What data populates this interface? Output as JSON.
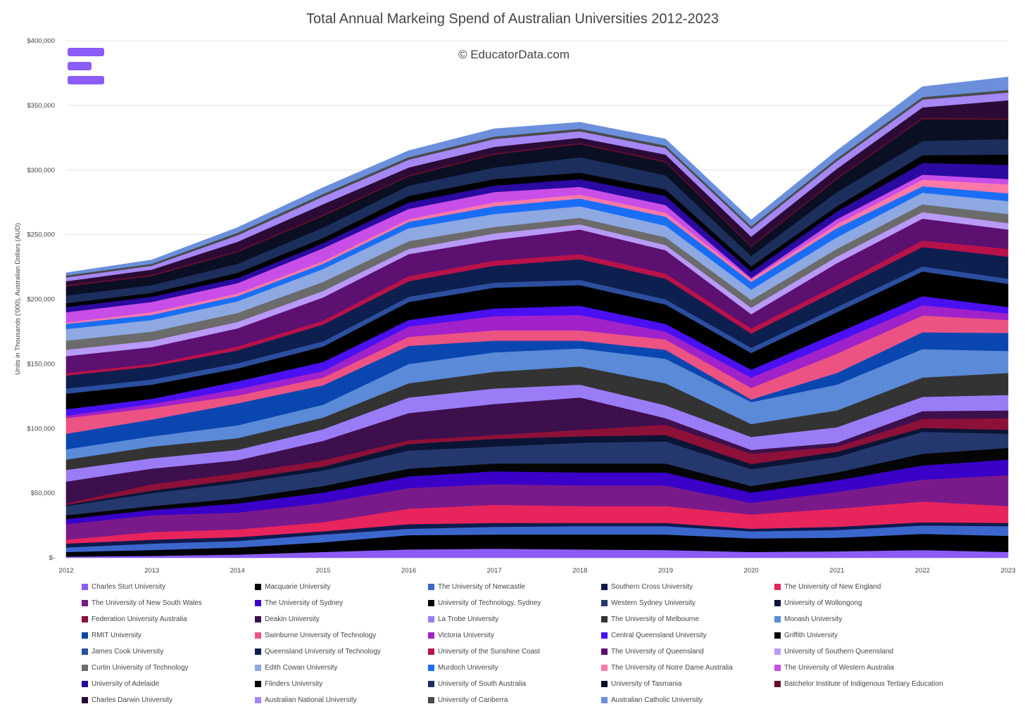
{
  "chart_data": {
    "type": "area",
    "title": "Total Annual Markeing Spend of Australian Universities 2012-2023",
    "watermark": "© EducatorData.com",
    "xlabel": "",
    "ylabel": "Units in Thousands ('000), Australian Dollars (AUD)",
    "x": [
      "2012",
      "2013",
      "2014",
      "2015",
      "2016",
      "2017",
      "2018",
      "2019",
      "2020",
      "2021",
      "2022",
      "2023"
    ],
    "ylim": [
      0,
      400000
    ],
    "yticks": [
      0,
      50000,
      100000,
      150000,
      200000,
      250000,
      300000,
      350000,
      400000
    ],
    "ytick_labels": [
      "$-",
      "$50,000",
      "$100,000",
      "$150,000",
      "$200,000",
      "$250,000",
      "$300,000",
      "$350,000",
      "$400,000"
    ],
    "stacked": true,
    "legend_position": "bottom",
    "series": [
      {
        "name": "Charles Sturt University",
        "color": "#8b5cf6",
        "values": [
          1000,
          1500,
          2500,
          4500,
          6500,
          7000,
          6500,
          6000,
          4500,
          5000,
          6000,
          4500
        ]
      },
      {
        "name": "Macquarie University",
        "color": "#000000",
        "values": [
          3500,
          4500,
          5500,
          7500,
          11000,
          11000,
          11500,
          12000,
          10500,
          10500,
          12500,
          12500
        ]
      },
      {
        "name": "The University of Newcastle",
        "color": "#3b66cc",
        "values": [
          3500,
          5000,
          5000,
          6000,
          5000,
          6000,
          6500,
          6500,
          5500,
          6000,
          6500,
          7500
        ]
      },
      {
        "name": "Southern Cross University",
        "color": "#0d1b4c",
        "values": [
          3000,
          3000,
          3000,
          2500,
          3500,
          3000,
          2500,
          2500,
          2000,
          2500,
          2500,
          2500
        ]
      },
      {
        "name": "The University of New England",
        "color": "#e8245d",
        "values": [
          3000,
          6000,
          6000,
          7000,
          12000,
          14000,
          13000,
          13000,
          11000,
          14000,
          16000,
          13000
        ]
      },
      {
        "name": "The University of New South Wales",
        "color": "#7a1a8a",
        "values": [
          12000,
          13000,
          13000,
          15000,
          16000,
          16000,
          16000,
          16000,
          9000,
          13000,
          17000,
          24000
        ]
      },
      {
        "name": "The University of Sydney",
        "color": "#3a00c8",
        "values": [
          4000,
          4000,
          7000,
          8000,
          9000,
          10000,
          10000,
          10000,
          8000,
          9000,
          11000,
          12000
        ]
      },
      {
        "name": "University of Technology, Sydney",
        "color": "#050505",
        "values": [
          3000,
          3000,
          4000,
          5000,
          6000,
          6000,
          7000,
          7000,
          5000,
          6000,
          9000,
          9000
        ]
      },
      {
        "name": "Western Sydney University",
        "color": "#25386e",
        "values": [
          7000,
          10000,
          12000,
          12000,
          14000,
          13000,
          16000,
          17000,
          13000,
          12000,
          17000,
          11000
        ]
      },
      {
        "name": "University of Wollongong",
        "color": "#0a1535",
        "values": [
          1000,
          2000,
          2500,
          3000,
          5000,
          6000,
          5000,
          5000,
          4000,
          4000,
          3000,
          3000
        ]
      },
      {
        "name": "Federation University Australia",
        "color": "#8c1038",
        "values": [
          1000,
          5000,
          5000,
          5000,
          3000,
          3000,
          5000,
          8000,
          8000,
          4000,
          7000,
          9000
        ]
      },
      {
        "name": "Deakin University",
        "color": "#3d0f4d",
        "values": [
          17000,
          12000,
          10000,
          15000,
          21000,
          24000,
          25000,
          5000,
          3000,
          3000,
          6000,
          6000
        ]
      },
      {
        "name": "La Trobe University",
        "color": "#9b7cf7",
        "values": [
          9000,
          8000,
          8000,
          9000,
          12000,
          12000,
          10000,
          10000,
          10000,
          12000,
          11000,
          12000
        ]
      },
      {
        "name": "The University of Melbourne",
        "color": "#333333",
        "values": [
          8000,
          9000,
          9000,
          9000,
          11000,
          13000,
          14000,
          17000,
          10000,
          13000,
          15000,
          17000
        ]
      },
      {
        "name": "Monash University",
        "color": "#5a8ad8",
        "values": [
          8000,
          8000,
          10000,
          10000,
          15000,
          15000,
          14000,
          19000,
          17000,
          20000,
          22000,
          17000
        ]
      },
      {
        "name": "RMIT University",
        "color": "#0a46b0",
        "values": [
          12000,
          13000,
          17000,
          15000,
          14000,
          9000,
          6000,
          7000,
          2000,
          9000,
          13000,
          14000
        ]
      },
      {
        "name": "Swinburne University of Technology",
        "color": "#ec5383",
        "values": [
          12000,
          9000,
          6000,
          6000,
          7000,
          8000,
          8000,
          8000,
          9000,
          15000,
          13000,
          10000
        ]
      },
      {
        "name": "Victoria University",
        "color": "#a022c8",
        "values": [
          2000,
          3000,
          5000,
          5000,
          8000,
          11000,
          12000,
          6000,
          8000,
          9000,
          8000,
          5000
        ]
      },
      {
        "name": "Central Queensland University",
        "color": "#4b10f2",
        "values": [
          5000,
          4000,
          6000,
          7000,
          5000,
          6000,
          7000,
          6000,
          6000,
          7000,
          7000,
          5000
        ]
      },
      {
        "name": "Griffith University",
        "color": "#000000",
        "values": [
          12000,
          11000,
          10000,
          12000,
          14000,
          16000,
          16000,
          15000,
          13000,
          16000,
          19000,
          18000
        ]
      },
      {
        "name": "James Cook University",
        "color": "#2c4e9e",
        "values": [
          4000,
          4000,
          4000,
          4000,
          4000,
          4000,
          4000,
          4000,
          4000,
          4000,
          4000,
          4000
        ]
      },
      {
        "name": "Queensland University of Technology",
        "color": "#0d1f4f",
        "values": [
          10000,
          10000,
          10000,
          13000,
          12000,
          13000,
          16000,
          16000,
          11000,
          13000,
          15000,
          17000
        ]
      },
      {
        "name": "University of the Sunshine Coast",
        "color": "#b8124a",
        "values": [
          2000,
          2000,
          3000,
          3000,
          4000,
          4000,
          4000,
          4000,
          4000,
          4000,
          5000,
          6000
        ]
      },
      {
        "name": "The University of Queensland",
        "color": "#5c1070",
        "values": [
          13000,
          13000,
          14000,
          18000,
          17000,
          16000,
          19000,
          18000,
          11000,
          17000,
          17000,
          15000
        ]
      },
      {
        "name": "University of Southern Queensland",
        "color": "#b89af8",
        "values": [
          5000,
          5000,
          5000,
          5000,
          4000,
          5000,
          4000,
          4000,
          5000,
          5000,
          5000,
          5000
        ]
      },
      {
        "name": "Curtin University of Technology",
        "color": "#6b6b6b",
        "values": [
          7000,
          7000,
          7000,
          7000,
          6000,
          5000,
          5000,
          6000,
          6000,
          6000,
          6000,
          7000
        ]
      },
      {
        "name": "Edith Cowan University",
        "color": "#8ea8e2",
        "values": [
          9000,
          9000,
          9000,
          10000,
          10000,
          10000,
          9000,
          9000,
          8000,
          9000,
          9000,
          10000
        ]
      },
      {
        "name": "Murdoch University",
        "color": "#1a6ef5",
        "values": [
          4000,
          4000,
          4000,
          4000,
          5000,
          6000,
          6000,
          7000,
          6000,
          7000,
          5000,
          6000
        ]
      },
      {
        "name": "The University of Notre Dame Australia",
        "color": "#ff7aa8",
        "values": [
          1000,
          2000,
          2000,
          2000,
          2000,
          3000,
          3000,
          3000,
          2000,
          3000,
          5000,
          7000
        ]
      },
      {
        "name": "The University of Western Australia",
        "color": "#c94ee8",
        "values": [
          8000,
          8000,
          8000,
          10000,
          8000,
          8000,
          6000,
          6000,
          1000,
          4000,
          4000,
          4000
        ]
      },
      {
        "name": "University of Adelaide",
        "color": "#2a0aa0",
        "values": [
          4000,
          4000,
          4000,
          4000,
          5000,
          5000,
          6000,
          7000,
          5000,
          6000,
          9000,
          11000
        ]
      },
      {
        "name": "Flinders University",
        "color": "#000000",
        "values": [
          3000,
          3000,
          4000,
          4000,
          5000,
          5000,
          5000,
          5000,
          4000,
          4000,
          6000,
          8000
        ]
      },
      {
        "name": "University of South Australia",
        "color": "#1c2e5c",
        "values": [
          6000,
          6000,
          7000,
          8000,
          8000,
          9000,
          12000,
          11000,
          8000,
          11000,
          11000,
          12000
        ]
      },
      {
        "name": "University of Tasmania",
        "color": "#0a0f24",
        "values": [
          7000,
          7000,
          9000,
          9000,
          7000,
          10000,
          10000,
          10000,
          7000,
          10000,
          17000,
          15000
        ]
      },
      {
        "name": "Batchelor Institute of Indigenous Tertiary Education",
        "color": "#6a0d2e",
        "values": [
          1000,
          1000,
          1000,
          1000,
          1000,
          1000,
          1000,
          1000,
          1000,
          1000,
          1000,
          1000
        ]
      },
      {
        "name": "Charles Darwin University",
        "color": "#2b0b35",
        "values": [
          3000,
          4000,
          7000,
          8000,
          6000,
          5000,
          4000,
          5000,
          7000,
          7000,
          8000,
          14000
        ]
      },
      {
        "name": "Australian National University",
        "color": "#a588f5",
        "values": [
          3000,
          3000,
          5000,
          6000,
          6000,
          6000,
          5000,
          5000,
          6000,
          6000,
          6000,
          6000
        ]
      },
      {
        "name": "University of Canberra",
        "color": "#4a4a4a",
        "values": [
          1500,
          1500,
          2000,
          2000,
          2000,
          2000,
          2000,
          2000,
          2000,
          2000,
          2000,
          2000
        ]
      },
      {
        "name": "Australian Catholic University",
        "color": "#6b8fdb",
        "values": [
          2000,
          3000,
          4000,
          5000,
          5000,
          6000,
          5000,
          5000,
          5000,
          6000,
          8000,
          10000
        ]
      }
    ]
  }
}
